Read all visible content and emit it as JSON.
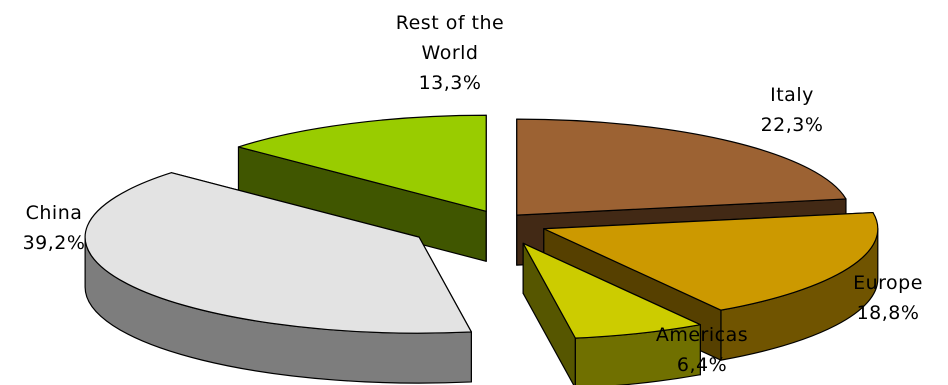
{
  "chart_data": {
    "type": "pie",
    "style": "3d-exploded",
    "slices": [
      {
        "label": "Italy",
        "value_text": "22,3%",
        "value": 22.3,
        "color": "#9C6233"
      },
      {
        "label": "Europe",
        "value_text": "18,8%",
        "value": 18.8,
        "color": "#CC9900"
      },
      {
        "label": "Americas",
        "value_text": "6,4%",
        "value": 6.4,
        "color": "#CCCC00"
      },
      {
        "label": "China",
        "value_text": "39,2%",
        "value": 39.2,
        "color": "#E3E3E3"
      },
      {
        "label": "Rest of the World",
        "label_lines": [
          "Rest of the",
          "World"
        ],
        "value_text": "13,3%",
        "value": 13.3,
        "color": "#99CC00"
      }
    ],
    "legend": "none",
    "data_labels": "outside"
  }
}
